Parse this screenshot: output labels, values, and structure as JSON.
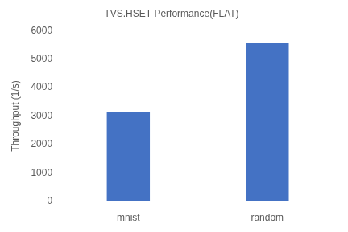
{
  "chart_data": {
    "type": "bar",
    "title": "TVS.HSET Performance(FLAT)",
    "y_label": "Throughput (1/s)",
    "categories": [
      "mnist",
      "random"
    ],
    "values": [
      3150,
      5560
    ],
    "color": "#4472c4",
    "ylim": [
      0,
      6000
    ],
    "yticks": [
      0,
      1000,
      2000,
      3000,
      4000,
      5000,
      6000
    ],
    "grid": true
  }
}
